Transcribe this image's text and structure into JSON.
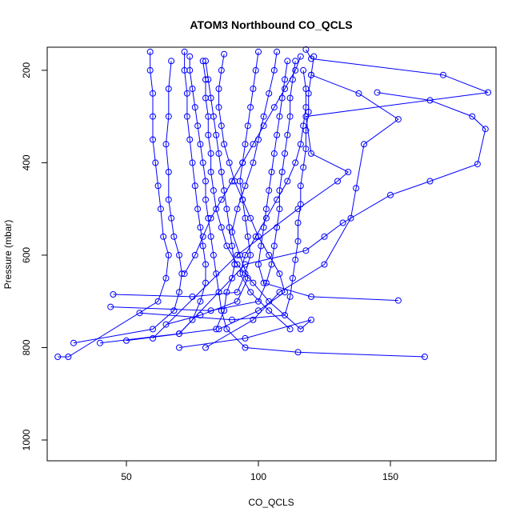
{
  "chart_data": {
    "type": "line",
    "title": "ATOM3 Northbound CO_QCLS",
    "xlabel": "CO_QCLS",
    "ylabel": "Pressure (mbar)",
    "xlim": [
      20,
      190
    ],
    "ylim": [
      1045,
      150
    ],
    "y_reversed": true,
    "x_ticks": [
      50,
      100,
      150
    ],
    "y_ticks": [
      200,
      400,
      600,
      800,
      1000
    ],
    "grid": false,
    "legend": "none",
    "color": "#0000ff",
    "marker": "open-circle",
    "series": [
      {
        "points": [
          [
            24,
            820
          ],
          [
            28,
            820
          ],
          [
            62,
            700
          ],
          [
            65,
            650
          ],
          [
            66,
            600
          ],
          [
            64,
            560
          ],
          [
            63,
            500
          ],
          [
            62,
            450
          ],
          [
            61,
            400
          ],
          [
            60,
            350
          ],
          [
            60,
            300
          ],
          [
            60,
            250
          ],
          [
            59,
            200
          ],
          [
            59,
            160
          ]
        ]
      },
      {
        "points": [
          [
            30,
            790
          ],
          [
            60,
            760
          ],
          [
            68,
            720
          ],
          [
            70,
            680
          ],
          [
            71,
            640
          ],
          [
            70,
            600
          ],
          [
            68,
            560
          ],
          [
            67,
            520
          ],
          [
            66,
            480
          ],
          [
            66,
            420
          ],
          [
            65,
            360
          ],
          [
            66,
            300
          ],
          [
            66,
            240
          ],
          [
            67,
            180
          ]
        ]
      },
      {
        "points": [
          [
            40,
            790
          ],
          [
            70,
            770
          ],
          [
            75,
            740
          ],
          [
            78,
            700
          ],
          [
            80,
            660
          ],
          [
            80,
            620
          ],
          [
            79,
            580
          ],
          [
            78,
            540
          ],
          [
            77,
            500
          ],
          [
            76,
            450
          ],
          [
            75,
            400
          ],
          [
            74,
            350
          ],
          [
            73,
            300
          ],
          [
            73,
            250
          ],
          [
            72,
            200
          ],
          [
            72,
            160
          ]
        ]
      },
      {
        "points": [
          [
            50,
            785
          ],
          [
            84,
            760
          ],
          [
            87,
            720
          ],
          [
            88,
            680
          ],
          [
            90,
            650
          ],
          [
            91,
            620
          ],
          [
            90,
            580
          ],
          [
            89,
            540
          ],
          [
            88,
            500
          ],
          [
            87,
            460
          ],
          [
            86,
            420
          ],
          [
            85,
            380
          ],
          [
            84,
            340
          ],
          [
            83,
            300
          ],
          [
            82,
            260
          ],
          [
            81,
            220
          ],
          [
            80,
            180
          ]
        ]
      },
      {
        "points": [
          [
            45,
            685
          ],
          [
            75,
            690
          ],
          [
            92,
            680
          ],
          [
            95,
            640
          ],
          [
            97,
            600
          ],
          [
            96,
            560
          ],
          [
            95,
            520
          ],
          [
            94,
            480
          ],
          [
            93,
            440
          ],
          [
            94,
            400
          ],
          [
            95,
            360
          ],
          [
            96,
            320
          ],
          [
            97,
            280
          ],
          [
            98,
            240
          ],
          [
            99,
            200
          ],
          [
            100,
            160
          ]
        ]
      },
      {
        "points": [
          [
            44,
            712
          ],
          [
            82,
            720
          ],
          [
            100,
            700
          ],
          [
            103,
            660
          ],
          [
            105,
            620
          ],
          [
            106,
            580
          ],
          [
            107,
            540
          ],
          [
            108,
            500
          ],
          [
            108,
            460
          ],
          [
            109,
            420
          ],
          [
            110,
            380
          ],
          [
            111,
            340
          ],
          [
            112,
            300
          ],
          [
            112,
            260
          ],
          [
            113,
            220
          ],
          [
            114,
            180
          ]
        ]
      },
      {
        "points": [
          [
            55,
            725
          ],
          [
            90,
            740
          ],
          [
            110,
            730
          ],
          [
            112,
            690
          ],
          [
            113,
            650
          ],
          [
            114,
            610
          ],
          [
            115,
            570
          ],
          [
            115,
            530
          ],
          [
            116,
            490
          ],
          [
            116,
            450
          ],
          [
            117,
            410
          ],
          [
            118,
            370
          ],
          [
            118,
            330
          ],
          [
            119,
            290
          ],
          [
            119,
            250
          ],
          [
            120,
            210
          ],
          [
            121,
            170
          ]
        ]
      },
      {
        "points": [
          [
            163,
            820
          ],
          [
            115,
            810
          ],
          [
            95,
            800
          ],
          [
            88,
            760
          ],
          [
            86,
            720
          ],
          [
            85,
            680
          ],
          [
            84,
            640
          ],
          [
            83,
            600
          ],
          [
            82,
            560
          ],
          [
            81,
            520
          ],
          [
            80,
            480
          ],
          [
            80,
            440
          ],
          [
            79,
            400
          ],
          [
            78,
            360
          ],
          [
            77,
            320
          ],
          [
            76,
            280
          ],
          [
            75,
            240
          ],
          [
            74,
            200
          ],
          [
            74,
            170
          ]
        ]
      },
      {
        "points": [
          [
            153,
            698
          ],
          [
            120,
            690
          ],
          [
            102,
            660
          ],
          [
            100,
            620
          ],
          [
            101,
            580
          ],
          [
            102,
            540
          ],
          [
            103,
            500
          ],
          [
            104,
            460
          ],
          [
            105,
            420
          ],
          [
            106,
            380
          ],
          [
            107,
            340
          ],
          [
            108,
            300
          ],
          [
            109,
            260
          ],
          [
            110,
            220
          ],
          [
            111,
            180
          ]
        ]
      },
      {
        "points": [
          [
            70,
            770
          ],
          [
            95,
            620
          ],
          [
            118,
            590
          ],
          [
            125,
            560
          ],
          [
            132,
            530
          ],
          [
            150,
            470
          ],
          [
            165,
            440
          ],
          [
            183,
            403
          ],
          [
            186,
            327
          ],
          [
            181,
            300
          ],
          [
            165,
            265
          ],
          [
            145,
            248
          ]
        ]
      },
      {
        "points": [
          [
            80,
            800
          ],
          [
            98,
            740
          ],
          [
            108,
            680
          ],
          [
            125,
            620
          ],
          [
            135,
            520
          ],
          [
            137,
            455
          ],
          [
            140,
            360
          ],
          [
            153,
            306
          ],
          [
            138,
            250
          ],
          [
            120,
            210
          ]
        ]
      },
      {
        "points": [
          [
            60,
            780
          ],
          [
            92,
            600
          ],
          [
            115,
            500
          ],
          [
            130,
            440
          ],
          [
            134,
            420
          ],
          [
            120,
            380
          ],
          [
            118,
            300
          ],
          [
            187,
            248
          ],
          [
            170,
            210
          ],
          [
            120,
            175
          ],
          [
            118,
            155
          ]
        ]
      },
      {
        "points": [
          [
            70,
            800
          ],
          [
            95,
            780
          ],
          [
            120,
            740
          ],
          [
            116,
            760
          ],
          [
            104,
            700
          ],
          [
            98,
            660
          ],
          [
            92,
            620
          ],
          [
            88,
            580
          ],
          [
            86,
            540
          ],
          [
            84,
            500
          ],
          [
            83,
            460
          ],
          [
            82,
            420
          ],
          [
            82,
            380
          ],
          [
            81,
            340
          ],
          [
            81,
            300
          ],
          [
            80,
            260
          ],
          [
            80,
            220
          ],
          [
            79,
            180
          ]
        ]
      },
      {
        "points": [
          [
            65,
            750
          ],
          [
            78,
            730
          ],
          [
            92,
            700
          ],
          [
            96,
            650
          ],
          [
            93,
            600
          ],
          [
            90,
            550
          ],
          [
            92,
            500
          ],
          [
            95,
            450
          ],
          [
            98,
            400
          ],
          [
            100,
            350
          ],
          [
            102,
            300
          ],
          [
            104,
            250
          ],
          [
            106,
            200
          ],
          [
            107,
            160
          ]
        ]
      },
      {
        "points": [
          [
            85,
            760
          ],
          [
            100,
            720
          ],
          [
            110,
            680
          ],
          [
            108,
            640
          ],
          [
            104,
            600
          ],
          [
            100,
            560
          ],
          [
            97,
            520
          ],
          [
            94,
            480
          ],
          [
            91,
            440
          ],
          [
            89,
            400
          ],
          [
            87,
            360
          ],
          [
            86,
            320
          ],
          [
            85,
            280
          ],
          [
            85,
            240
          ],
          [
            86,
            200
          ],
          [
            87,
            165
          ]
        ]
      },
      {
        "points": [
          [
            72,
            640
          ],
          [
            76,
            600
          ],
          [
            79,
            560
          ],
          [
            82,
            520
          ],
          [
            86,
            480
          ],
          [
            90,
            440
          ],
          [
            94,
            400
          ],
          [
            98,
            360
          ],
          [
            102,
            320
          ],
          [
            106,
            280
          ],
          [
            110,
            240
          ],
          [
            114,
            200
          ],
          [
            116,
            170
          ]
        ]
      },
      {
        "points": [
          [
            112,
            760
          ],
          [
            104,
            720
          ],
          [
            97,
            680
          ],
          [
            93,
            640
          ],
          [
            95,
            600
          ],
          [
            99,
            560
          ],
          [
            103,
            520
          ],
          [
            107,
            480
          ],
          [
            111,
            440
          ],
          [
            114,
            400
          ],
          [
            116,
            360
          ],
          [
            117,
            320
          ],
          [
            118,
            280
          ],
          [
            118,
            240
          ],
          [
            117,
            200
          ]
        ]
      }
    ]
  }
}
